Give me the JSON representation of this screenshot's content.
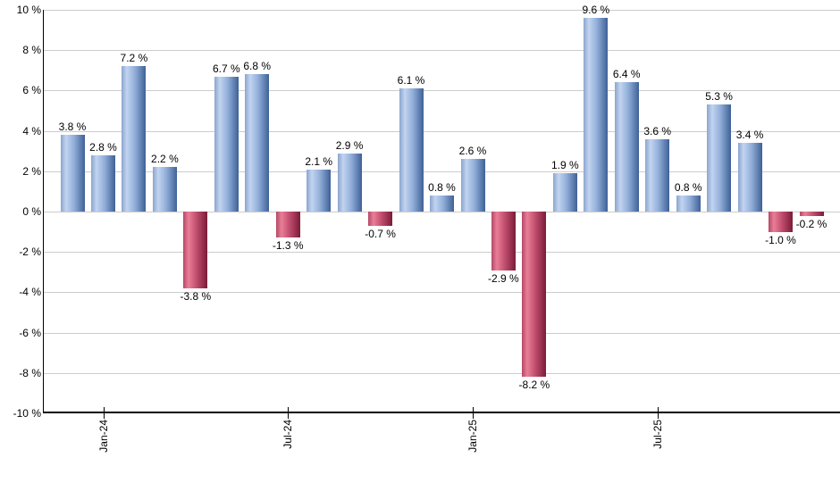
{
  "chart_data": {
    "type": "bar",
    "title": "",
    "xlabel": "",
    "ylabel": "",
    "ylim": [
      -10,
      10
    ],
    "grid": true,
    "value_suffix": " %",
    "values": [
      3.8,
      2.8,
      7.2,
      2.2,
      -3.8,
      6.7,
      6.8,
      -1.3,
      2.1,
      2.9,
      -0.7,
      6.1,
      0.8,
      2.6,
      -2.9,
      -8.2,
      1.9,
      9.6,
      6.4,
      3.6,
      0.8,
      5.3,
      3.4,
      -1.0,
      -0.2
    ],
    "bar_labels": [
      "3.8 %",
      "2.8 %",
      "7.2 %",
      "2.2 %",
      "-3.8 %",
      "6.7 %",
      "6.8 %",
      "-1.3 %",
      "2.1 %",
      "2.9 %",
      "-0.7 %",
      "6.1 %",
      "0.8 %",
      "2.6 %",
      "-2.9 %",
      "-8.2 %",
      "1.9 %",
      "9.6 %",
      "6.4 %",
      "3.6 %",
      "0.8 %",
      "5.3 %",
      "3.4 %",
      "-1.0 %",
      "-0.2 %"
    ],
    "y_ticks": [
      10,
      8,
      6,
      4,
      2,
      0,
      -2,
      -4,
      -6,
      -8,
      -10
    ],
    "y_tick_labels": [
      "10 %",
      "8 %",
      "6 %",
      "4 %",
      "2 %",
      "0 %",
      "-2 %",
      "-4 %",
      "-6 %",
      "-8 %",
      "-10 %"
    ],
    "x_tick_labels": [
      "Jan-24",
      "Jul-24",
      "Jan-25",
      "Jul-25"
    ],
    "x_tick_bar_indices": [
      1,
      7,
      13,
      19
    ],
    "colors": {
      "positive_gradient": [
        "#8AA5CE",
        "#C2D4F0",
        "#92AFD9",
        "#3F6197"
      ],
      "negative_gradient": [
        "#B34867",
        "#EA7E97",
        "#C14E6E",
        "#7A1C39"
      ],
      "gridline": "#CCCCCC",
      "axis": "#000000",
      "label_text": "#000000"
    }
  }
}
